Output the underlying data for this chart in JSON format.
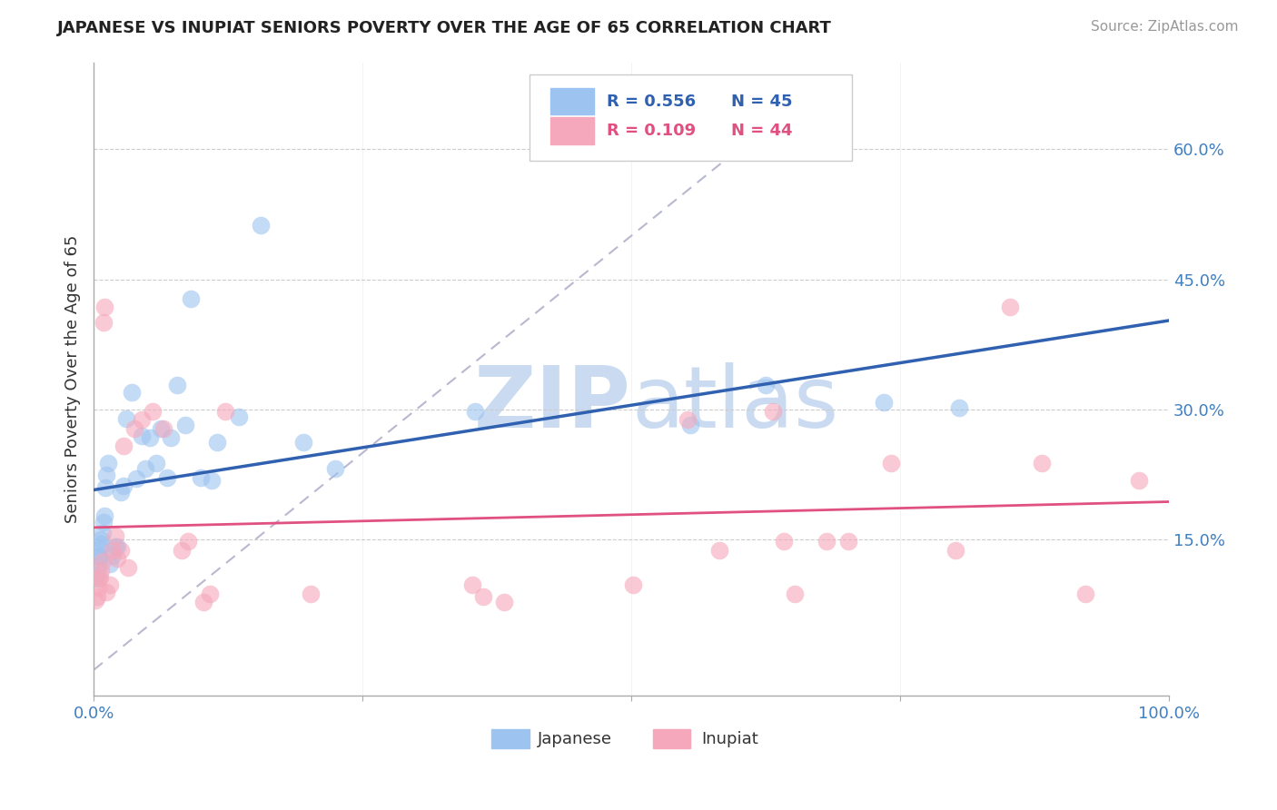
{
  "title": "JAPANESE VS INUPIAT SENIORS POVERTY OVER THE AGE OF 65 CORRELATION CHART",
  "source_text": "Source: ZipAtlas.com",
  "ylabel": "Seniors Poverty Over the Age of 65",
  "xlim": [
    0,
    1.0
  ],
  "ylim": [
    -0.03,
    0.7
  ],
  "xticks": [
    0.0,
    0.25,
    0.5,
    0.75,
    1.0
  ],
  "xtick_labels": [
    "0.0%",
    "",
    "",
    "",
    "100.0%"
  ],
  "ytick_positions": [
    0.0,
    0.15,
    0.3,
    0.45,
    0.6
  ],
  "ytick_labels": [
    "",
    "15.0%",
    "30.0%",
    "45.0%",
    "60.0%"
  ],
  "legend_label1": "Japanese",
  "legend_label2": "Inupiat",
  "r1": 0.556,
  "n1": 45,
  "r2": 0.109,
  "n2": 44,
  "color_japanese": "#9DC3F0",
  "color_inupiat": "#F5A8BB",
  "line_color_japanese": "#3060B0",
  "line_color_inupiat": "#E05080",
  "diag_line_color": "#B8B8D0",
  "background_color": "#FFFFFF",
  "japanese_x": [
    0.002,
    0.003,
    0.004,
    0.005,
    0.005,
    0.006,
    0.007,
    0.007,
    0.008,
    0.009,
    0.01,
    0.011,
    0.012,
    0.013,
    0.015,
    0.018,
    0.02,
    0.025,
    0.03,
    0.022,
    0.028,
    0.035,
    0.04,
    0.045,
    0.048,
    0.052,
    0.058,
    0.062,
    0.068,
    0.072,
    0.078,
    0.085,
    0.09,
    0.1,
    0.11,
    0.115,
    0.135,
    0.155,
    0.195,
    0.225,
    0.355,
    0.555,
    0.625,
    0.735,
    0.805
  ],
  "japanese_y": [
    0.105,
    0.11,
    0.12,
    0.13,
    0.132,
    0.14,
    0.145,
    0.15,
    0.158,
    0.17,
    0.178,
    0.21,
    0.225,
    0.238,
    0.122,
    0.132,
    0.142,
    0.205,
    0.29,
    0.142,
    0.212,
    0.32,
    0.22,
    0.27,
    0.232,
    0.268,
    0.238,
    0.278,
    0.222,
    0.268,
    0.328,
    0.282,
    0.428,
    0.222,
    0.218,
    0.262,
    0.292,
    0.512,
    0.262,
    0.232,
    0.298,
    0.282,
    0.328,
    0.308,
    0.302
  ],
  "inupiat_x": [
    0.002,
    0.003,
    0.004,
    0.005,
    0.006,
    0.007,
    0.008,
    0.009,
    0.01,
    0.012,
    0.015,
    0.018,
    0.02,
    0.022,
    0.025,
    0.028,
    0.032,
    0.038,
    0.045,
    0.055,
    0.065,
    0.082,
    0.088,
    0.102,
    0.108,
    0.122,
    0.202,
    0.352,
    0.362,
    0.382,
    0.502,
    0.552,
    0.582,
    0.632,
    0.642,
    0.652,
    0.682,
    0.702,
    0.742,
    0.802,
    0.852,
    0.882,
    0.922,
    0.972
  ],
  "inupiat_y": [
    0.08,
    0.085,
    0.095,
    0.105,
    0.108,
    0.115,
    0.125,
    0.4,
    0.418,
    0.09,
    0.098,
    0.138,
    0.155,
    0.128,
    0.138,
    0.258,
    0.118,
    0.278,
    0.288,
    0.298,
    0.278,
    0.138,
    0.148,
    0.078,
    0.088,
    0.298,
    0.088,
    0.098,
    0.085,
    0.078,
    0.098,
    0.288,
    0.138,
    0.298,
    0.148,
    0.088,
    0.148,
    0.148,
    0.238,
    0.138,
    0.418,
    0.238,
    0.088,
    0.218
  ]
}
